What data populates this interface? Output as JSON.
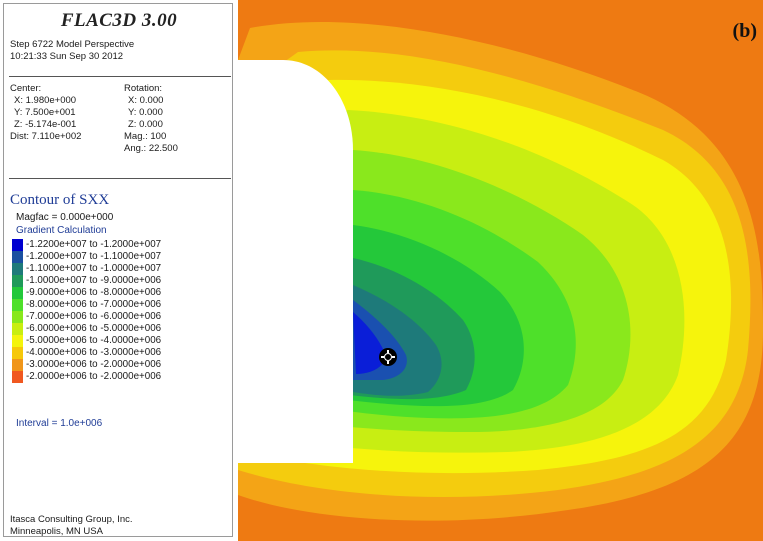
{
  "app": {
    "title": "FLAC3D 3.00",
    "step_line": "Step 6722  Model Perspective",
    "datetime": "10:21:33 Sun Sep 30 2012"
  },
  "view": {
    "center_label": "Center:",
    "center_x": "X: 1.980e+000",
    "center_y": "Y: 7.500e+001",
    "center_z": "Z: -5.174e-001",
    "dist": "Dist: 7.110e+002",
    "rotation_label": "Rotation:",
    "rot_x": "X:   0.000",
    "rot_y": "Y:   0.000",
    "rot_z": "Z:   0.000",
    "mag": "Mag.:      100",
    "ang": "Ang.:  22.500"
  },
  "contour": {
    "title": "Contour of SXX",
    "magfac": "Magfac =  0.000e+000",
    "gradient": "Gradient Calculation",
    "interval": "Interval =  1.0e+006",
    "legend": [
      {
        "label": "-1.2200e+007 to -1.2000e+007",
        "color": "#0000d0"
      },
      {
        "label": "-1.2000e+007 to -1.1000e+007",
        "color": "#1a50a0"
      },
      {
        "label": "-1.1000e+007 to -1.0000e+007",
        "color": "#1e7a7a"
      },
      {
        "label": "-1.0000e+007 to -9.0000e+006",
        "color": "#1f9a5a"
      },
      {
        "label": "-9.0000e+006 to -8.0000e+006",
        "color": "#22c83a"
      },
      {
        "label": "-8.0000e+006 to -7.0000e+006",
        "color": "#4ee02a"
      },
      {
        "label": "-7.0000e+006 to -6.0000e+006",
        "color": "#88e81c"
      },
      {
        "label": "-6.0000e+006 to -5.0000e+006",
        "color": "#c8ee10"
      },
      {
        "label": "-5.0000e+006 to -4.0000e+006",
        "color": "#f4f40c"
      },
      {
        "label": "-4.0000e+006 to -3.0000e+006",
        "color": "#f6c80a"
      },
      {
        "label": "-3.0000e+006 to -2.0000e+006",
        "color": "#f0961a"
      },
      {
        "label": "-2.0000e+006 to -2.0000e+006",
        "color": "#f05820"
      }
    ]
  },
  "footer": {
    "company": "Itasca Consulting Group, Inc.",
    "location": "Minneapolis, MN  USA"
  },
  "viewport": {
    "panel_label": "(b)"
  }
}
